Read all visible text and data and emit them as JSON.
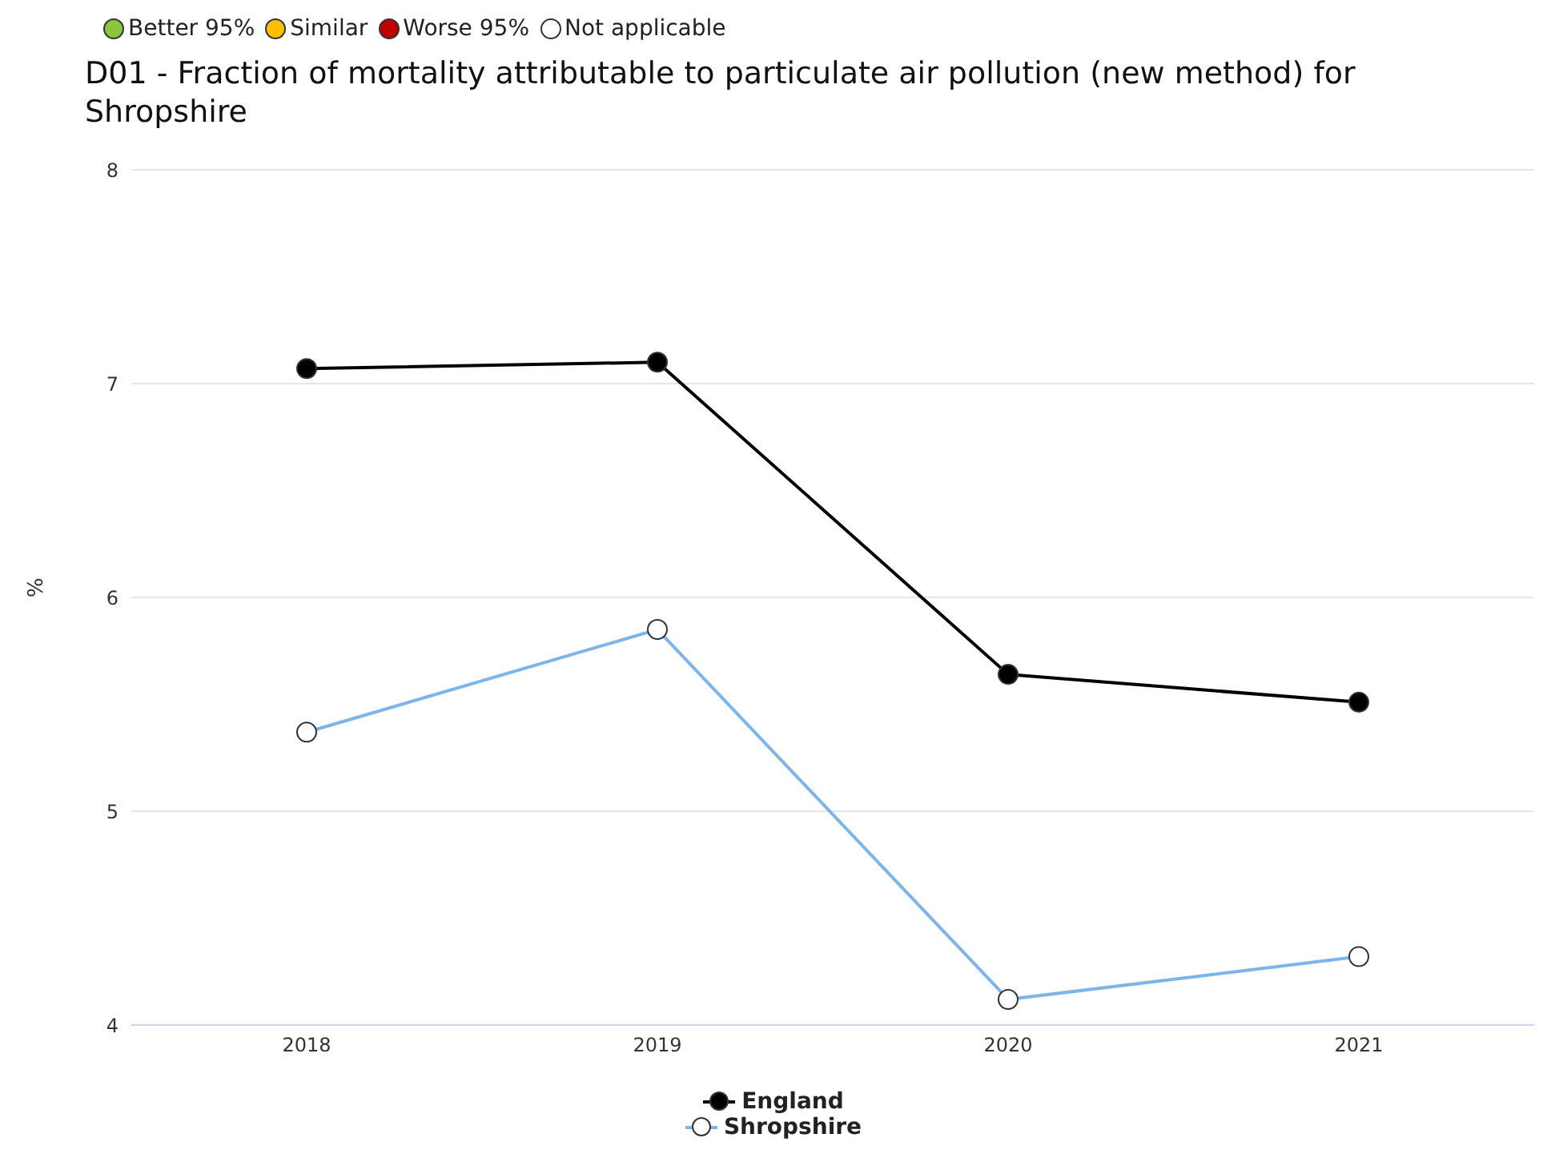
{
  "chart_data": {
    "type": "line",
    "title": "D01 - Fraction of mortality attributable to particulate air pollution (new method) for Shropshire",
    "annotations": [
      "Better 95%",
      "Similar",
      "Worse 95%",
      "Not applicable"
    ],
    "categories": [
      "2018",
      "2019",
      "2020",
      "2021"
    ],
    "series": [
      {
        "name": "England",
        "color": "#000000",
        "values": [
          7.07,
          7.1,
          5.64,
          5.51
        ]
      },
      {
        "name": "Shropshire",
        "color": "#7cb5ec",
        "values": [
          5.37,
          5.85,
          4.12,
          4.32
        ]
      }
    ],
    "ylabel": "%",
    "ylim": [
      4,
      8
    ],
    "yticks": [
      4,
      5,
      6,
      7,
      8
    ],
    "grid": "y",
    "legend": "bottom",
    "marker": "circle",
    "line_style": "solid"
  }
}
